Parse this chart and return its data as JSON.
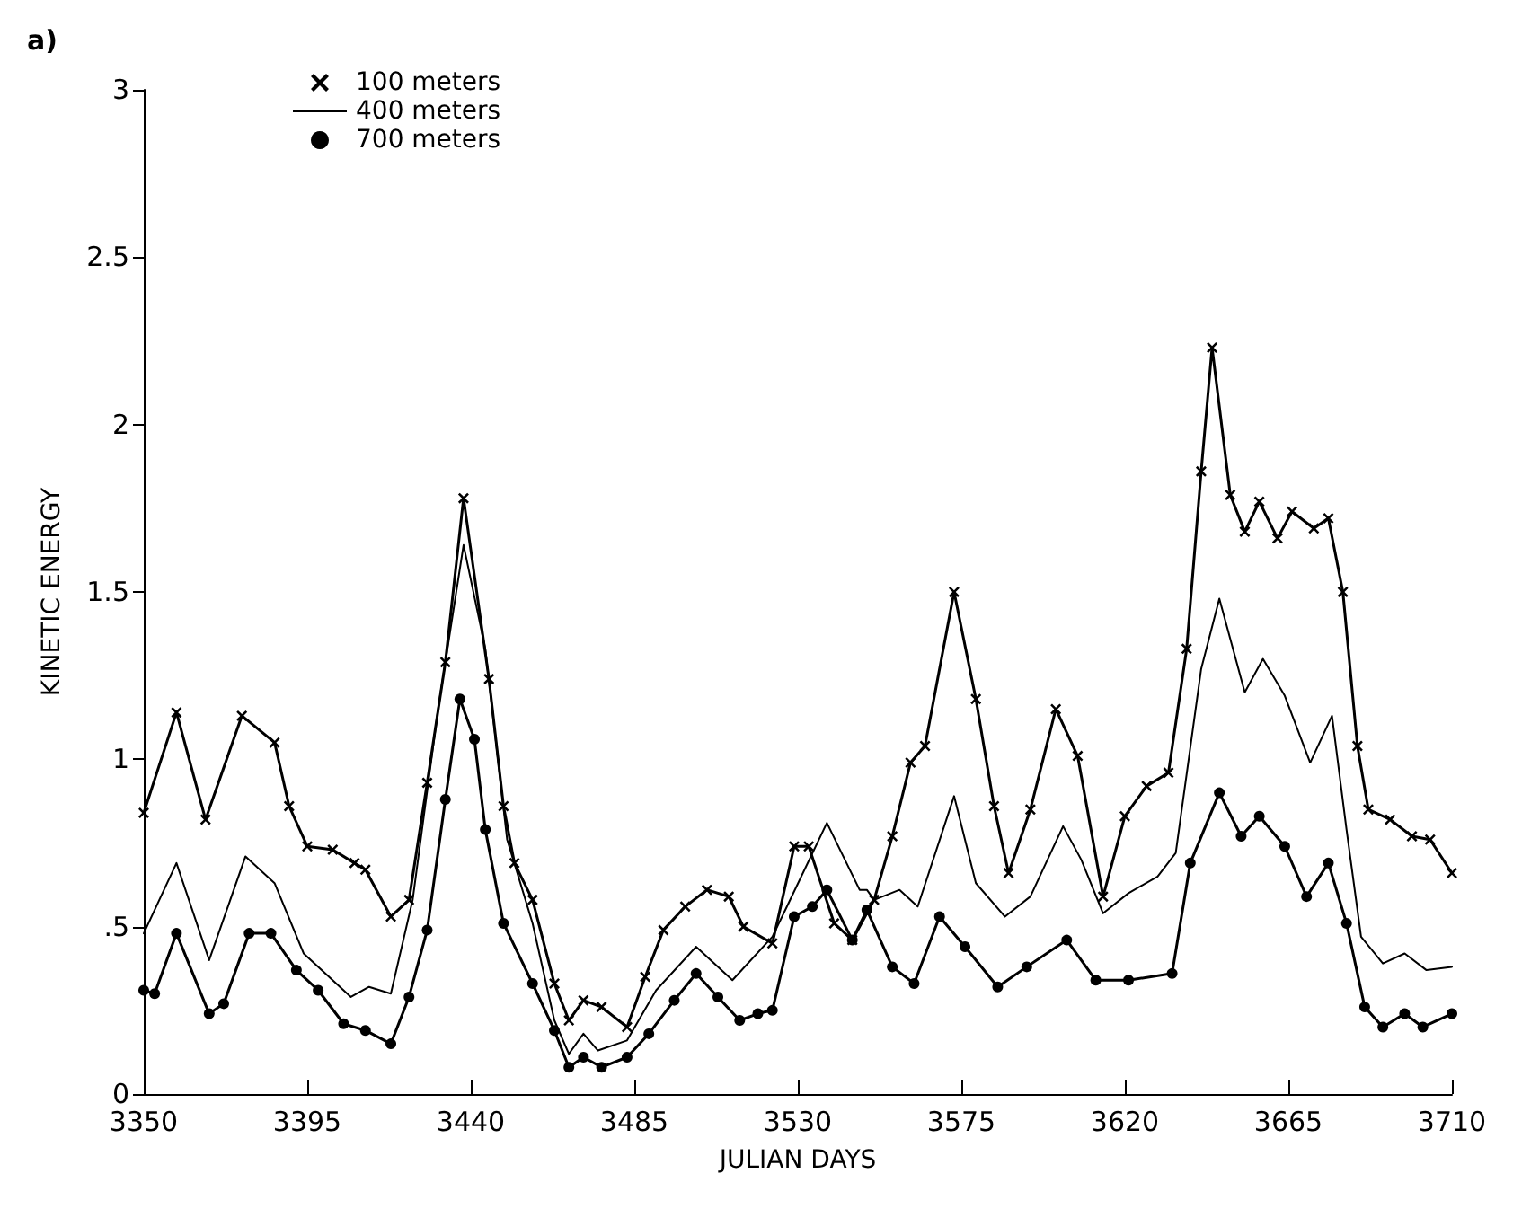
{
  "chart_data": {
    "type": "line",
    "title": "a)",
    "xlabel": "JULIAN DAYS",
    "ylabel": "KINETIC ENERGY",
    "xlim": [
      3350,
      3710
    ],
    "xticks": [
      3350,
      3395,
      3440,
      3485,
      3530,
      3575,
      3620,
      3665,
      3710
    ],
    "ylim": [
      0,
      3
    ],
    "yticks": [
      0,
      {
        "value": 0.5,
        "label": ".5"
      },
      1,
      1.5,
      2,
      2.5,
      3
    ],
    "grid": false,
    "legend": "top left",
    "series": [
      {
        "name": "100 meters",
        "color": "#000000",
        "marker": "cross",
        "x": [
          3350,
          3359,
          3367,
          3377,
          3386,
          3390,
          3395,
          3402,
          3408,
          3411,
          3418,
          3423,
          3428,
          3433,
          3438,
          3445,
          3449,
          3452,
          3457,
          3463,
          3467,
          3471,
          3476,
          3483,
          3488,
          3493,
          3499,
          3505,
          3511,
          3515,
          3523,
          3529,
          3533,
          3540,
          3545,
          3551,
          3556,
          3561,
          3565,
          3573,
          3579,
          3584,
          3588,
          3594,
          3601,
          3607,
          3614,
          3620,
          3626,
          3632,
          3637,
          3641,
          3644,
          3649,
          3653,
          3657,
          3662,
          3666,
          3672,
          3676,
          3680,
          3684,
          3687,
          3693,
          3699,
          3704,
          3710
        ],
        "values": [
          0.84,
          1.14,
          0.82,
          1.13,
          1.05,
          0.86,
          0.74,
          0.73,
          0.69,
          0.67,
          0.53,
          0.58,
          0.93,
          1.29,
          1.78,
          1.24,
          0.86,
          0.69,
          0.58,
          0.33,
          0.22,
          0.28,
          0.26,
          0.2,
          0.35,
          0.49,
          0.56,
          0.61,
          0.59,
          0.5,
          0.45,
          0.74,
          0.74,
          0.51,
          0.46,
          0.58,
          0.77,
          0.99,
          1.04,
          1.5,
          1.18,
          0.86,
          0.66,
          0.85,
          1.15,
          1.01,
          0.59,
          0.83,
          0.92,
          0.96,
          1.33,
          1.86,
          2.23,
          1.79,
          1.68,
          1.77,
          1.66,
          1.74,
          1.69,
          1.72,
          1.5,
          1.04,
          0.85,
          0.82,
          0.77,
          0.76,
          0.66
        ]
      },
      {
        "name": "400 meters",
        "color": "#000000",
        "marker": "none",
        "x": [
          3350,
          3359,
          3368,
          3378,
          3386,
          3394,
          3407,
          3412,
          3418,
          3424,
          3431,
          3438,
          3444,
          3450,
          3457,
          3463,
          3467,
          3471,
          3475,
          3483,
          3491,
          3502,
          3512,
          3523,
          3527,
          3538,
          3547,
          3549,
          3551,
          3558,
          3563,
          3573,
          3579,
          3587,
          3594,
          3603,
          3608,
          3614,
          3621,
          3629,
          3634,
          3641,
          3646,
          3653,
          3658,
          3664,
          3671,
          3677,
          3681,
          3685,
          3691,
          3697,
          3703,
          3710
        ],
        "values": [
          0.48,
          0.69,
          0.4,
          0.71,
          0.63,
          0.42,
          0.29,
          0.32,
          0.3,
          0.58,
          1.15,
          1.64,
          1.33,
          0.76,
          0.51,
          0.22,
          0.12,
          0.18,
          0.13,
          0.16,
          0.31,
          0.44,
          0.34,
          0.47,
          0.56,
          0.81,
          0.61,
          0.61,
          0.58,
          0.61,
          0.56,
          0.89,
          0.63,
          0.53,
          0.59,
          0.8,
          0.7,
          0.54,
          0.6,
          0.65,
          0.72,
          1.27,
          1.48,
          1.2,
          1.3,
          1.19,
          0.99,
          1.13,
          0.79,
          0.47,
          0.39,
          0.42,
          0.37,
          0.38
        ]
      },
      {
        "name": "700 meters",
        "color": "#000000",
        "marker": "circle",
        "x": [
          3350,
          3353,
          3359,
          3368,
          3372,
          3379,
          3385,
          3392,
          3398,
          3405,
          3411,
          3418,
          3423,
          3428,
          3433,
          3437,
          3441,
          3444,
          3449,
          3457,
          3463,
          3467,
          3471,
          3476,
          3483,
          3489,
          3496,
          3502,
          3508,
          3514,
          3519,
          3523,
          3529,
          3534,
          3538,
          3545,
          3549,
          3556,
          3562,
          3569,
          3576,
          3585,
          3593,
          3604,
          3612,
          3621,
          3633,
          3638,
          3646,
          3652,
          3657,
          3664,
          3670,
          3676,
          3681,
          3686,
          3691,
          3697,
          3702,
          3710
        ],
        "values": [
          0.31,
          0.3,
          0.48,
          0.24,
          0.27,
          0.48,
          0.48,
          0.37,
          0.31,
          0.21,
          0.19,
          0.15,
          0.29,
          0.49,
          0.88,
          1.18,
          1.06,
          0.79,
          0.51,
          0.33,
          0.19,
          0.08,
          0.11,
          0.08,
          0.11,
          0.18,
          0.28,
          0.36,
          0.29,
          0.22,
          0.24,
          0.25,
          0.53,
          0.56,
          0.61,
          0.46,
          0.55,
          0.38,
          0.33,
          0.53,
          0.44,
          0.32,
          0.38,
          0.46,
          0.34,
          0.34,
          0.36,
          0.69,
          0.9,
          0.77,
          0.83,
          0.74,
          0.59,
          0.69,
          0.51,
          0.26,
          0.2,
          0.24,
          0.2,
          0.24
        ]
      }
    ]
  }
}
